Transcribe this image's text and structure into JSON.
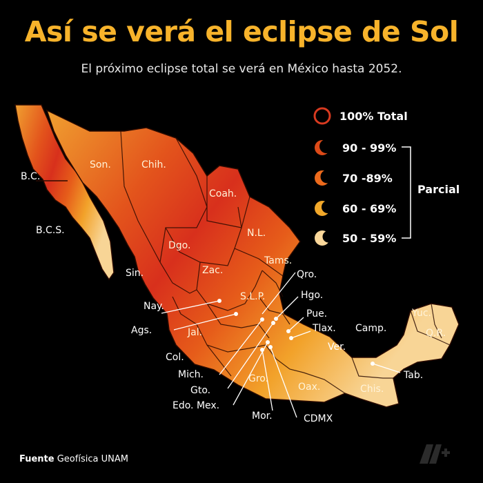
{
  "header": {
    "title": "Así se verá el eclipse de Sol",
    "subtitle": "El próximo eclipse total se verá en México hasta 2052."
  },
  "legend": {
    "items": [
      {
        "label": "100% Total",
        "color": "#d83a20",
        "icon": "full-ring-icon"
      },
      {
        "label": "90 - 99%",
        "color": "#dc4a18",
        "icon": "crescent-icon"
      },
      {
        "label": "70 -89%",
        "color": "#ec6a1c",
        "icon": "crescent-icon"
      },
      {
        "label": "60 - 69%",
        "color": "#f2a82a",
        "icon": "crescent-icon"
      },
      {
        "label": "50 - 59%",
        "color": "#fad79a",
        "icon": "crescent-icon"
      }
    ],
    "group_label": "Parcial"
  },
  "states": {
    "bc": "B.C.",
    "bcs": "B.C.S.",
    "son": "Son.",
    "chih": "Chih.",
    "coah": "Coah.",
    "nl": "N.L.",
    "dgo": "Dgo.",
    "tams": "Tams.",
    "sin": "Sin.",
    "zac": "Zac.",
    "slp": "S.L.P.",
    "qro": "Qro.",
    "hgo": "Hgo.",
    "nay": "Nay.",
    "pue": "Pue.",
    "tlax": "Tlax.",
    "ags": "Ags.",
    "jal": "Jal.",
    "camp": "Camp.",
    "yuc": "Yuc.",
    "qr": "Q.R.",
    "ver": "Ver.",
    "col": "Col.",
    "mich": "Mich.",
    "gto": "Gto.",
    "edomex": "Edo. Mex.",
    "gro": "Gro.",
    "oax": "Oax.",
    "chis": "Chis.",
    "tab": "Tab.",
    "mor": "Mor.",
    "cdmx": "CDMX"
  },
  "footer": {
    "source_label": "Fuente",
    "source_text": "Geofísica UNAM"
  }
}
